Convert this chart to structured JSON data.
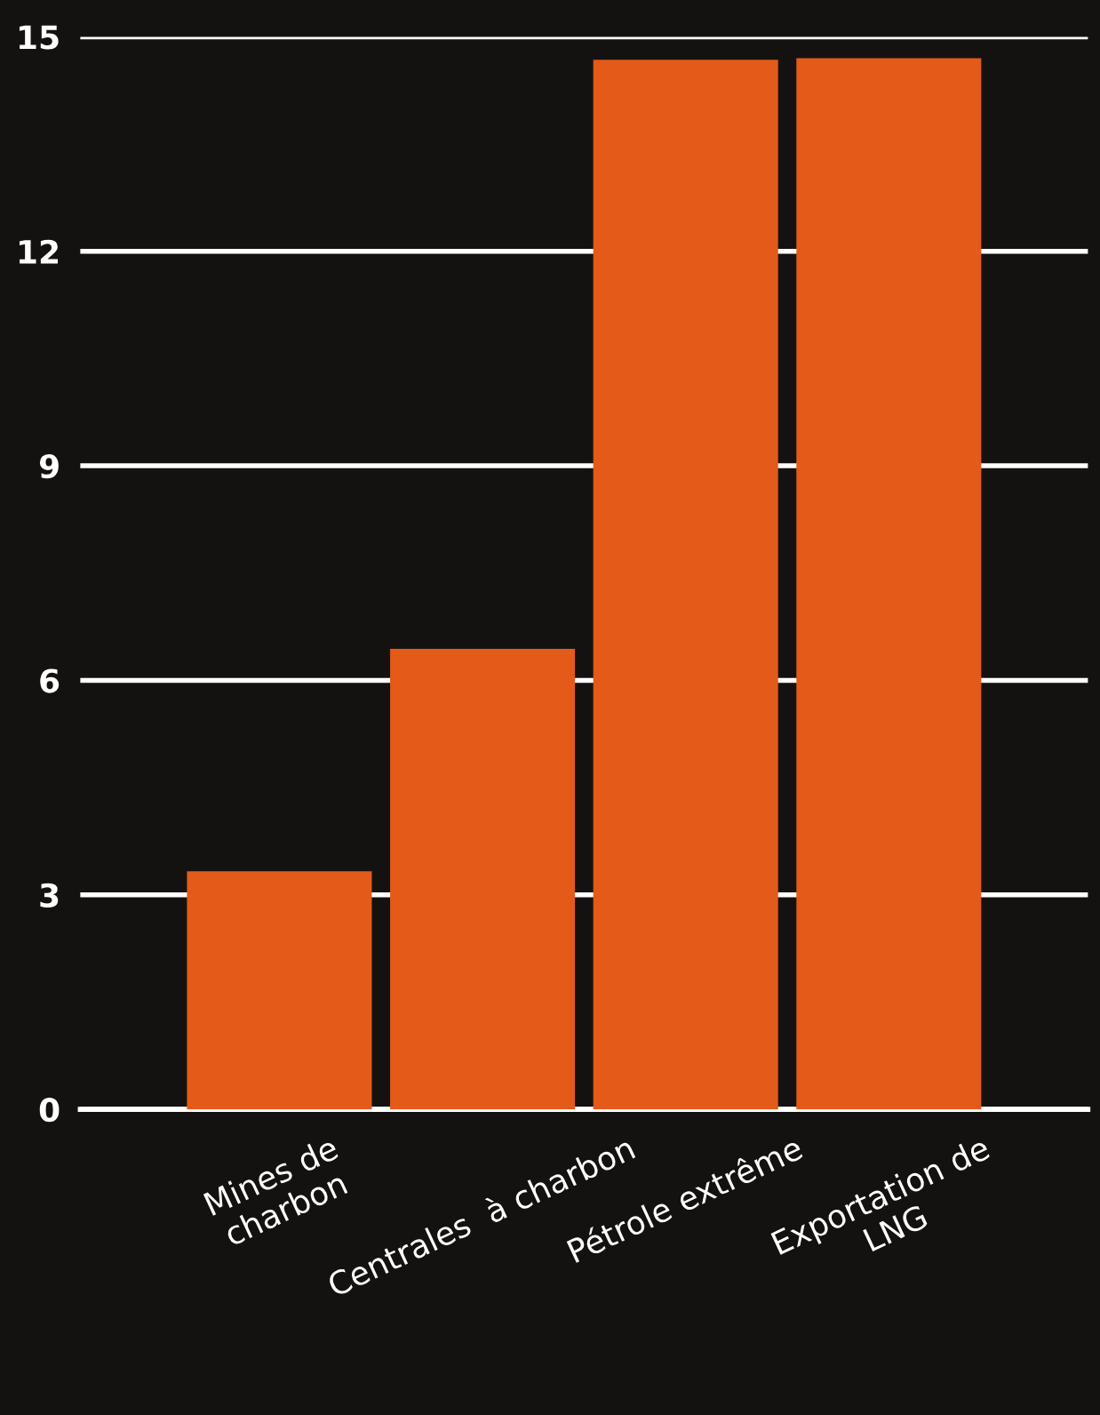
{
  "chart_data": {
    "type": "bar",
    "categories": [
      "Mines de\ncharbon",
      "Centrales  à charbon",
      "Pétrole extrême",
      "Exportation de\nLNG"
    ],
    "values": [
      3.33,
      6.44,
      14.68,
      14.7
    ],
    "color": "#e45a18",
    "ylim": [
      0,
      15
    ],
    "yticks": [
      0,
      3,
      6,
      9,
      12,
      15
    ],
    "grid": "y"
  }
}
